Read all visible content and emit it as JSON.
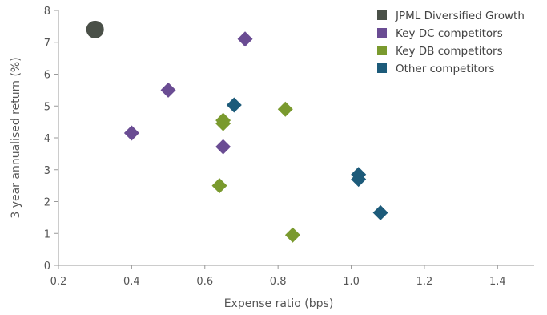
{
  "chart_data": {
    "type": "scatter",
    "xlabel": "Expense ratio (bps)",
    "ylabel": "3 year annualised return (%)",
    "xlim": [
      0.2,
      1.5
    ],
    "ylim": [
      0,
      8
    ],
    "xticks": [
      0.2,
      0.4,
      0.6,
      0.8,
      1.0,
      1.2,
      1.4
    ],
    "xtick_labels": [
      "0.2",
      "0.4",
      "0.6",
      "0.8",
      "1.0",
      "1.2",
      "1.4"
    ],
    "yticks": [
      0,
      1,
      2,
      3,
      4,
      5,
      6,
      7,
      8
    ],
    "ytick_labels": [
      "0",
      "1",
      "2",
      "3",
      "4",
      "5",
      "6",
      "7",
      "8"
    ],
    "grid": false,
    "legend_position": "top-right",
    "series": [
      {
        "name": "JPML Diversified Growth",
        "marker": "circle",
        "color": "#4a5048",
        "points": [
          {
            "x": 0.3,
            "y": 7.4
          }
        ]
      },
      {
        "name": "Key DC competitors",
        "marker": "diamond",
        "color": "#6a4c93",
        "points": [
          {
            "x": 0.71,
            "y": 7.1
          },
          {
            "x": 0.5,
            "y": 5.5
          },
          {
            "x": 0.4,
            "y": 4.15
          },
          {
            "x": 0.65,
            "y": 3.72
          }
        ]
      },
      {
        "name": "Key DB competitors",
        "marker": "diamond",
        "color": "#7a9a2e",
        "points": [
          {
            "x": 0.82,
            "y": 4.9
          },
          {
            "x": 0.65,
            "y": 4.55
          },
          {
            "x": 0.65,
            "y": 4.45
          },
          {
            "x": 0.64,
            "y": 2.5
          },
          {
            "x": 0.84,
            "y": 0.95
          }
        ]
      },
      {
        "name": "Other competitors",
        "marker": "diamond",
        "color": "#1d5b7a",
        "points": [
          {
            "x": 0.68,
            "y": 5.03
          },
          {
            "x": 1.02,
            "y": 2.85
          },
          {
            "x": 1.02,
            "y": 2.7
          },
          {
            "x": 1.08,
            "y": 1.65
          }
        ]
      }
    ]
  }
}
